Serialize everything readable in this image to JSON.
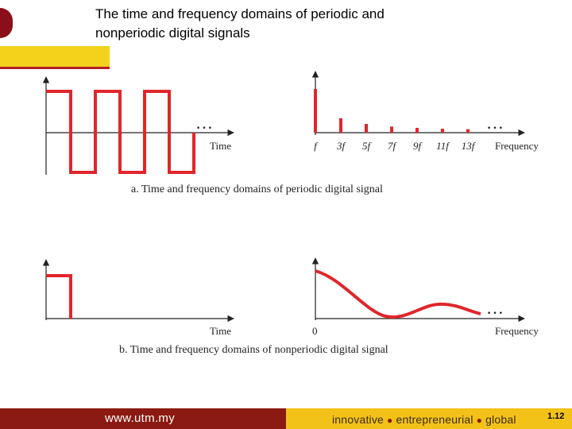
{
  "slide": {
    "title": "The time and frequency domains of periodic and\n nonperiodic digital signals"
  },
  "diagram_a": {
    "time_axis_label": "Time",
    "freq_axis_label": "Frequency",
    "continuation": "…",
    "harmonics": [
      {
        "label": "f",
        "amplitude": 1.0
      },
      {
        "label": "3f",
        "amplitude": 0.33
      },
      {
        "label": "5f",
        "amplitude": 0.2
      },
      {
        "label": "7f",
        "amplitude": 0.14
      },
      {
        "label": "9f",
        "amplitude": 0.11
      },
      {
        "label": "11f",
        "amplitude": 0.09
      },
      {
        "label": "13f",
        "amplitude": 0.08
      }
    ],
    "caption": "a. Time and frequency domains of periodic digital signal"
  },
  "diagram_b": {
    "time_axis_label": "Time",
    "freq_axis_label": "Frequency",
    "zero_label": "0",
    "continuation": "…",
    "caption": "b. Time and frequency domains of nonperiodic digital signal"
  },
  "footer": {
    "url": "www.utm.my",
    "tagline": [
      "innovative",
      "entrepreneurial",
      "global"
    ],
    "page_number": "1.12"
  },
  "colors": {
    "signal": "#e0262b",
    "footer_left": "#8b1a12",
    "footer_right": "#f3c219"
  }
}
